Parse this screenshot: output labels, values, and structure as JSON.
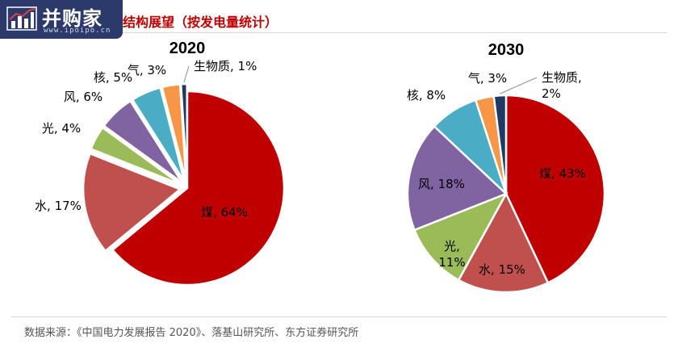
{
  "logo": {
    "name": "并购家",
    "url": "www.ipoipo.cn"
  },
  "title": "结构展望（按发电量统计）",
  "source": "数据来源：《中国电力发展报告 2020》、落基山研究所、东方证券研究所",
  "chart_data": [
    {
      "type": "pie",
      "title": "2020",
      "start": "12 o'clock, clockwise",
      "slices": [
        {
          "name": "煤",
          "label": "煤, 64%",
          "value": 64,
          "color": "#c00000",
          "exploded": false
        },
        {
          "name": "水",
          "label": "水, 17%",
          "value": 17,
          "color": "#c0504d",
          "exploded": true
        },
        {
          "name": "光",
          "label": "光, 4%",
          "value": 4,
          "color": "#9bbb59",
          "exploded": true
        },
        {
          "name": "风",
          "label": "风, 6%",
          "value": 6,
          "color": "#8064a2",
          "exploded": true
        },
        {
          "name": "核",
          "label": "核, 5%",
          "value": 5,
          "color": "#4bacc6",
          "exploded": true
        },
        {
          "name": "气",
          "label": "气, 3%",
          "value": 3,
          "color": "#f79646",
          "exploded": true
        },
        {
          "name": "生物质",
          "label": "生物质, 1%",
          "value": 1,
          "color": "#1f3864",
          "exploded": true
        }
      ]
    },
    {
      "type": "pie",
      "title": "2030",
      "start": "12 o'clock, clockwise",
      "slices": [
        {
          "name": "煤",
          "label": "煤, 43%",
          "value": 43,
          "color": "#c00000"
        },
        {
          "name": "水",
          "label": "水, 15%",
          "value": 15,
          "color": "#c0504d"
        },
        {
          "name": "光",
          "label": "光,\n11%",
          "value": 11,
          "color": "#9bbb59"
        },
        {
          "name": "风",
          "label": "风, 18%",
          "value": 18,
          "color": "#8064a2"
        },
        {
          "name": "核",
          "label": "核, 8%",
          "value": 8,
          "color": "#4bacc6"
        },
        {
          "name": "气",
          "label": "气, 3%",
          "value": 3,
          "color": "#f79646"
        },
        {
          "name": "生物质",
          "label": "生物质,\n2%",
          "value": 2,
          "color": "#1f3864"
        }
      ]
    }
  ]
}
